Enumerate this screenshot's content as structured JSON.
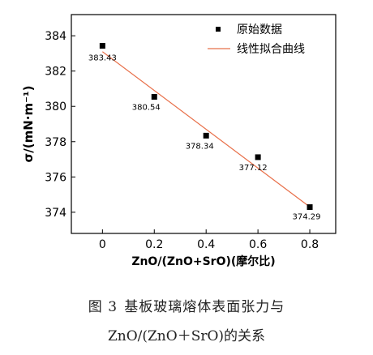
{
  "chart_data": {
    "type": "scatter",
    "title": "",
    "xlabel": "ZnO/(ZnO+SrO)(摩尔比)",
    "ylabel": "σ/(mN·m⁻¹)",
    "xlim": [
      -0.12,
      0.9
    ],
    "ylim": [
      372.8,
      385.2
    ],
    "xticks": [
      0,
      0.2,
      0.4,
      0.6,
      0.8
    ],
    "xtick_labels": [
      "0",
      "0.2",
      "0.4",
      "0.6",
      "0.8"
    ],
    "yticks": [
      374,
      376,
      378,
      380,
      382,
      384
    ],
    "ytick_labels": [
      "374",
      "376",
      "378",
      "380",
      "382",
      "384"
    ],
    "grid": false,
    "legend_position": "top-right",
    "series": [
      {
        "name": "原始数据",
        "type": "scatter",
        "marker": "square",
        "color": "#000000",
        "x": [
          0,
          0.2,
          0.4,
          0.6,
          0.8
        ],
        "y": [
          383.43,
          380.54,
          378.34,
          377.12,
          374.29
        ],
        "labels": [
          "383.43",
          "380.54",
          "378.34",
          "377.12",
          "374.29"
        ]
      },
      {
        "name": "线性拟合曲线",
        "type": "line",
        "color": "#e8704a",
        "x": [
          0,
          0.8
        ],
        "y": [
          383.1,
          374.3
        ]
      }
    ]
  },
  "caption": {
    "figure_no": "图 3",
    "line1": "基板玻璃熔体表面张力与",
    "line2": "ZnO/(ZnO＋SrO)的关系"
  }
}
